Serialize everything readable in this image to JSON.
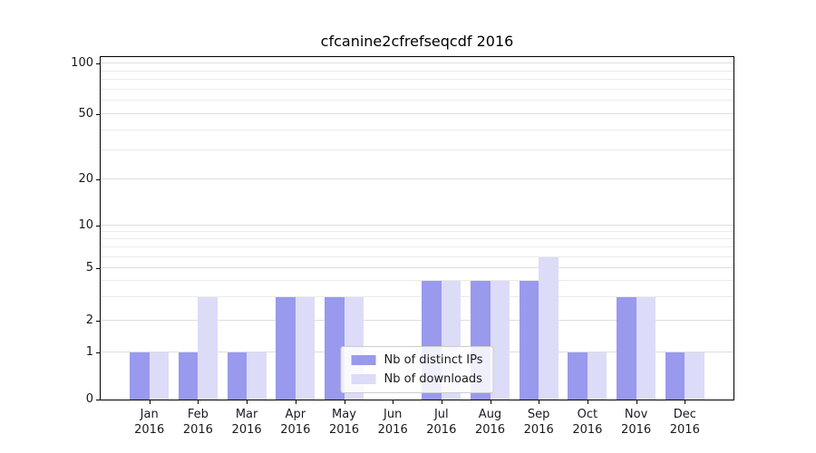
{
  "chart_data": {
    "type": "bar",
    "title": "cfcanine2cfrefseqcdf 2016",
    "categories": [
      "Jan 2016",
      "Feb 2016",
      "Mar 2016",
      "Apr 2016",
      "May 2016",
      "Jun 2016",
      "Jul 2016",
      "Aug 2016",
      "Sep 2016",
      "Oct 2016",
      "Nov 2016",
      "Dec 2016"
    ],
    "x_months": [
      "Jan",
      "Feb",
      "Mar",
      "Apr",
      "May",
      "Jun",
      "Jul",
      "Aug",
      "Sep",
      "Oct",
      "Nov",
      "Dec"
    ],
    "x_year": "2016",
    "series": [
      {
        "name": "Nb of distinct IPs",
        "color": "#9999ee",
        "values": [
          1,
          1,
          1,
          3,
          3,
          0,
          4,
          4,
          4,
          1,
          3,
          1
        ]
      },
      {
        "name": "Nb of downloads",
        "color": "#dcdcf8",
        "values": [
          1,
          3,
          1,
          3,
          3,
          0,
          4,
          4,
          6,
          1,
          3,
          1
        ]
      }
    ],
    "yscale": "symlog",
    "yticks": [
      0,
      1,
      2,
      5,
      10,
      20,
      50,
      100
    ],
    "ylim": [
      0,
      100
    ],
    "grid": "horizontal log gridlines",
    "legend_position": "lower center"
  }
}
